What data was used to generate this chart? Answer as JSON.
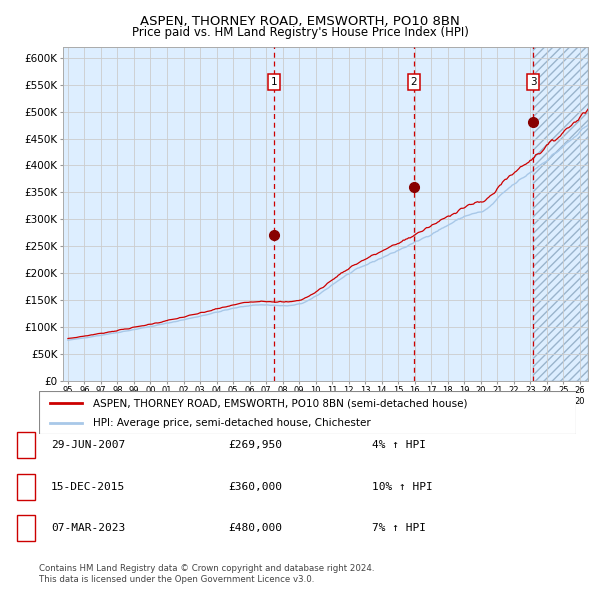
{
  "title1": "ASPEN, THORNEY ROAD, EMSWORTH, PO10 8BN",
  "title2": "Price paid vs. HM Land Registry's House Price Index (HPI)",
  "ylabel_vals": [
    "£0",
    "£50K",
    "£100K",
    "£150K",
    "£200K",
    "£250K",
    "£300K",
    "£350K",
    "£400K",
    "£450K",
    "£500K",
    "£550K",
    "£600K"
  ],
  "ylabel_nums": [
    0,
    50000,
    100000,
    150000,
    200000,
    250000,
    300000,
    350000,
    400000,
    450000,
    500000,
    550000,
    600000
  ],
  "xlim_start": 1994.7,
  "xlim_end": 2026.5,
  "ylim_min": 0,
  "ylim_max": 620000,
  "hpi_color": "#a8c8e8",
  "price_color": "#cc0000",
  "sale_dot_color": "#880000",
  "vline_color": "#cc0000",
  "grid_color": "#cccccc",
  "bg_color": "#ddeeff",
  "hatch_bg": "#c8daf0",
  "legend_label1": "ASPEN, THORNEY ROAD, EMSWORTH, PO10 8BN (semi-detached house)",
  "legend_label2": "HPI: Average price, semi-detached house, Chichester",
  "sale1_date": "29-JUN-2007",
  "sale1_price": "£269,950",
  "sale1_hpi": "4% ↑ HPI",
  "sale1_year": 2007.49,
  "sale1_value": 269950,
  "sale2_date": "15-DEC-2015",
  "sale2_price": "£360,000",
  "sale2_hpi": "10% ↑ HPI",
  "sale2_year": 2015.96,
  "sale2_value": 360000,
  "sale3_date": "07-MAR-2023",
  "sale3_price": "£480,000",
  "sale3_hpi": "7% ↑ HPI",
  "sale3_year": 2023.18,
  "sale3_value": 480000,
  "footnote1": "Contains HM Land Registry data © Crown copyright and database right 2024.",
  "footnote2": "This data is licensed under the Open Government Licence v3.0."
}
